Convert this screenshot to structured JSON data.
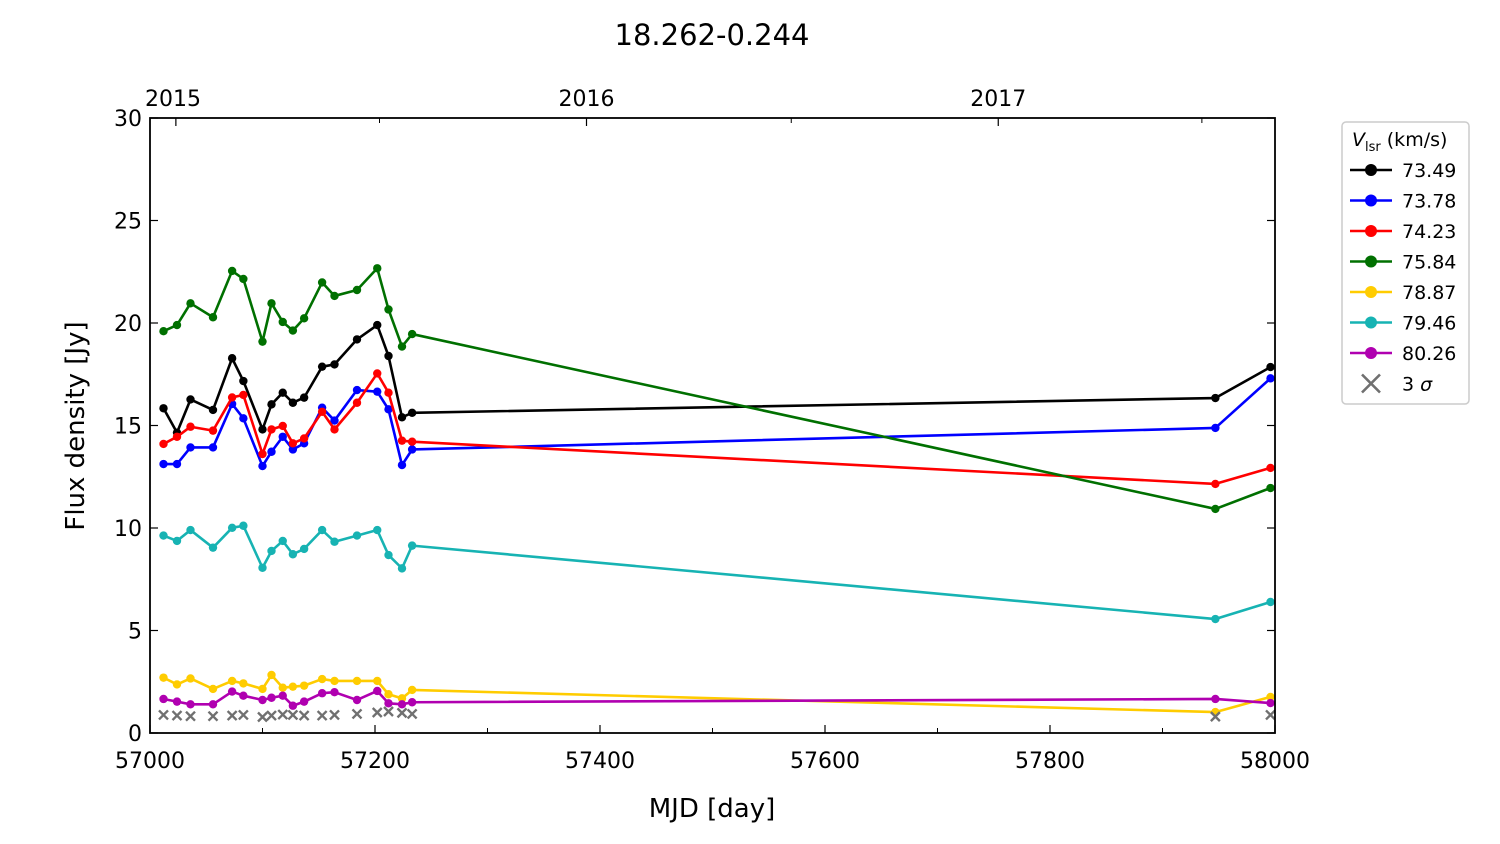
{
  "chart_data": {
    "type": "line",
    "title": "18.262-0.244",
    "xlabel": "MJD [day]",
    "ylabel": "Flux density [Jy]",
    "xlim": [
      57000,
      58000
    ],
    "ylim": [
      0,
      30
    ],
    "x_ticks": [
      57000,
      57200,
      57400,
      57600,
      57800,
      58000
    ],
    "x_minor_ticks": [
      57100,
      57300,
      57500,
      57700,
      57900
    ],
    "y_ticks": [
      0,
      5,
      10,
      15,
      20,
      25,
      30
    ],
    "top_axis": {
      "label_ticks": [
        {
          "label": "2015",
          "mjd": 57023
        },
        {
          "label": "2016",
          "mjd": 57388
        },
        {
          "label": "2017",
          "mjd": 57754
        }
      ],
      "minor_ticks_mjd": [
        57204,
        57570,
        57935
      ]
    },
    "grid": false,
    "legend": {
      "title": "V_lsr (km/s)",
      "title_main": "V",
      "title_sub": "lsr",
      "title_rest": " (km/s)",
      "position": "outside-right-top"
    },
    "x": [
      57012,
      57024,
      57036,
      57056,
      57073,
      57083,
      57100,
      57108,
      57118,
      57127,
      57137,
      57153,
      57164,
      57184,
      57202,
      57212,
      57224,
      57233,
      57947,
      57996
    ],
    "series": [
      {
        "name": "73.49",
        "color": "#000000",
        "values": [
          15.84,
          14.65,
          16.27,
          15.76,
          18.28,
          17.17,
          14.81,
          16.03,
          16.6,
          16.11,
          16.36,
          17.87,
          17.98,
          19.2,
          19.9,
          18.39,
          15.4,
          15.62,
          16.34,
          17.85
        ]
      },
      {
        "name": "73.78",
        "color": "#0000ff",
        "values": [
          13.12,
          13.12,
          13.93,
          13.93,
          16.05,
          15.35,
          13.02,
          13.72,
          14.45,
          13.83,
          14.13,
          15.87,
          15.24,
          16.73,
          16.65,
          15.79,
          13.07,
          13.83,
          14.88,
          17.3
        ]
      },
      {
        "name": "74.23",
        "color": "#ff0000",
        "values": [
          14.1,
          14.45,
          14.94,
          14.75,
          16.37,
          16.49,
          13.61,
          14.81,
          14.98,
          14.13,
          14.37,
          15.67,
          14.81,
          16.11,
          17.54,
          16.6,
          14.26,
          14.21,
          12.15,
          12.93
        ]
      },
      {
        "name": "75.84",
        "color": "#007000",
        "values": [
          19.6,
          19.9,
          20.96,
          20.28,
          22.54,
          22.15,
          19.09,
          20.96,
          20.05,
          19.63,
          20.23,
          21.98,
          21.32,
          21.61,
          22.67,
          20.66,
          18.85,
          19.46,
          10.93,
          11.95
        ]
      },
      {
        "name": "78.87",
        "color": "#ffcc00",
        "values": [
          2.7,
          2.37,
          2.66,
          2.15,
          2.54,
          2.42,
          2.15,
          2.83,
          2.21,
          2.26,
          2.31,
          2.63,
          2.54,
          2.54,
          2.54,
          1.89,
          1.69,
          2.1,
          1.02,
          1.76
        ]
      },
      {
        "name": "79.46",
        "color": "#17b3b3",
        "values": [
          9.63,
          9.37,
          9.9,
          9.04,
          10.01,
          10.11,
          8.06,
          8.88,
          9.37,
          8.72,
          8.98,
          9.9,
          9.33,
          9.63,
          9.9,
          8.68,
          8.03,
          9.14,
          5.56,
          6.39
        ]
      },
      {
        "name": "80.26",
        "color": "#b000b0",
        "values": [
          1.66,
          1.53,
          1.4,
          1.4,
          2.02,
          1.82,
          1.61,
          1.72,
          1.82,
          1.33,
          1.53,
          1.94,
          1.99,
          1.61,
          2.05,
          1.45,
          1.4,
          1.5,
          1.66,
          1.46
        ]
      }
    ],
    "sigma_marker": {
      "name": "3 σ",
      "label_main": "3 ",
      "label_sigma": "σ",
      "color": "#707070",
      "x": [
        57012,
        57024,
        57036,
        57056,
        57073,
        57083,
        57100,
        57108,
        57118,
        57127,
        57137,
        57153,
        57164,
        57184,
        57202,
        57212,
        57224,
        57233,
        57947,
        57996
      ],
      "values": [
        0.88,
        0.85,
        0.82,
        0.82,
        0.85,
        0.88,
        0.78,
        0.85,
        0.9,
        0.88,
        0.85,
        0.85,
        0.88,
        0.93,
        1.0,
        1.05,
        0.98,
        0.93,
        0.8,
        0.88
      ]
    }
  }
}
